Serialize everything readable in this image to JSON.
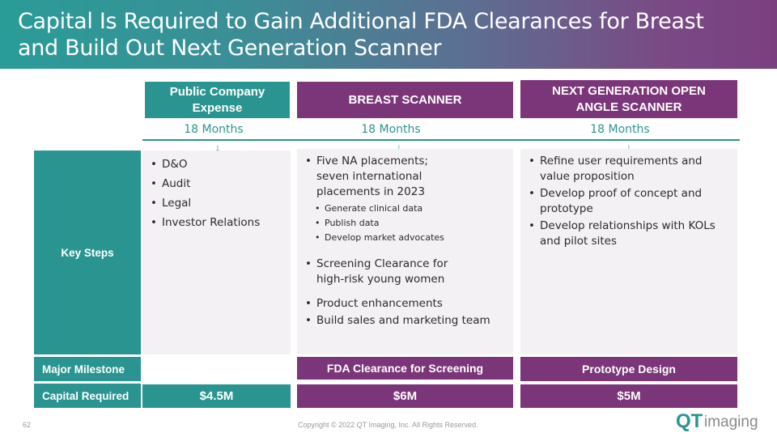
{
  "header": {
    "title": "Capital Is Required to Gain Additional FDA Clearances for Breast and Build Out Next Generation Scanner"
  },
  "columns": [
    {
      "title": "Public Company Expense",
      "duration": "18 Months"
    },
    {
      "title": "BREAST SCANNER",
      "duration": "18 Months"
    },
    {
      "title": "NEXT GENERATION OPEN ANGLE SCANNER",
      "duration": "18 Months"
    }
  ],
  "key_steps": {
    "label": "Key Steps",
    "public": [
      "D&O",
      "Audit",
      "Legal",
      "Investor Relations"
    ],
    "breast": {
      "main": "Five NA placements; seven international placements in 2023",
      "sub": [
        "Generate clinical data",
        "Publish data",
        "Develop market advocates"
      ],
      "screening": "Screening Clearance for high-risk young women",
      "more": [
        "Product enhancements",
        "Build sales and marketing team"
      ]
    },
    "next_gen": [
      "Refine user requirements and value proposition",
      "Develop proof of concept and prototype",
      "Develop relationships with KOLs and pilot sites"
    ]
  },
  "milestone": {
    "label": "Major Milestone",
    "breast": "FDA Clearance for Screening",
    "next_gen": "Prototype Design"
  },
  "capital": {
    "label": "Capital Required",
    "public": "$4.5M",
    "breast": "$6M",
    "next_gen": "$5M"
  },
  "footer": {
    "page_number": "62",
    "copyright": "Copyright © 2022 QT Imaging, Inc. All Rights Reserved."
  },
  "logo": {
    "text_qt": "QT",
    "text_imaging": "imaging"
  },
  "colors": {
    "teal": "#2a9590",
    "purple": "#7b3579",
    "panel": "#f4f1f4"
  }
}
